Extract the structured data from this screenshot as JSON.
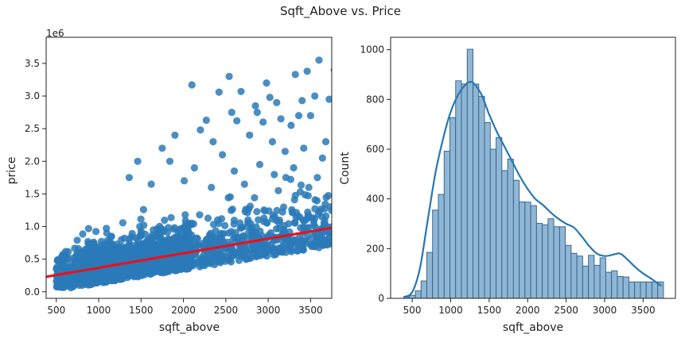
{
  "figure": {
    "title": "Sqft_Above vs. Price"
  },
  "chart_data": [
    {
      "type": "scatter",
      "xlabel": "sqft_above",
      "ylabel": "price",
      "offset_text": "1e6",
      "xlim": [
        380,
        3750
      ],
      "ylim": [
        -0.1,
        3.9
      ],
      "xticks": [
        500,
        1000,
        1500,
        2000,
        2500,
        3000,
        3500
      ],
      "xtick_labels": [
        "500",
        "1000",
        "1500",
        "2000",
        "2500",
        "3000",
        "3500"
      ],
      "yticks": [
        0.0,
        0.5,
        1.0,
        1.5,
        2.0,
        2.5,
        3.0,
        3.5
      ],
      "ytick_labels": [
        "0.0",
        "0.5",
        "1.0",
        "1.5",
        "2.0",
        "2.5",
        "3.0",
        "3.5"
      ],
      "grid": false,
      "colors": {
        "points": "#2a7ab8",
        "regression": "#e8111b"
      },
      "regression_line": {
        "x": [
          380,
          3750
        ],
        "y": [
          0.23,
          0.98
        ]
      },
      "outliers": {
        "x": [
          2100,
          2420,
          2540,
          2680,
          2980,
          3320,
          3460,
          3600,
          3780,
          2850,
          3100,
          3400,
          2270,
          2570,
          2870,
          3020,
          3150,
          3360,
          3550,
          3720,
          2200,
          2630,
          2940,
          3270,
          3500,
          1900,
          2350,
          2780,
          3050,
          3420,
          3680,
          1750,
          2460,
          3200,
          3640,
          1460,
          1840,
          2130,
          2600,
          2900,
          3300,
          3580,
          1360,
          1620,
          2010,
          2330,
          2720,
          3120,
          3480
        ],
        "y": [
          3.17,
          3.06,
          3.3,
          3.07,
          3.2,
          3.33,
          3.38,
          3.55,
          3.4,
          2.85,
          2.9,
          2.93,
          2.63,
          2.75,
          2.75,
          2.98,
          2.65,
          2.7,
          3.0,
          2.95,
          2.48,
          2.62,
          2.6,
          2.55,
          2.7,
          2.4,
          2.3,
          2.4,
          2.3,
          2.2,
          2.3,
          2.2,
          2.1,
          2.15,
          2.05,
          2.0,
          2.0,
          1.9,
          1.85,
          1.95,
          1.9,
          1.75,
          1.75,
          1.65,
          1.7,
          1.6,
          1.65,
          1.55,
          1.6
        ]
      }
    },
    {
      "type": "bar",
      "subtype": "histogram",
      "xlabel": "sqft_above",
      "ylabel": "Count",
      "xlim": [
        220,
        3920
      ],
      "ylim": [
        0,
        1050
      ],
      "xticks": [
        500,
        1000,
        1500,
        2000,
        2500,
        3000,
        3500
      ],
      "xtick_labels": [
        "500",
        "1000",
        "1500",
        "2000",
        "2500",
        "3000",
        "3500"
      ],
      "yticks": [
        0,
        200,
        400,
        600,
        800,
        1000
      ],
      "ytick_labels": [
        "0",
        "200",
        "400",
        "600",
        "800",
        "1000"
      ],
      "grid": false,
      "colors": {
        "bars": "#8fb6d4",
        "bar_edge": "#2f5f86",
        "kde": "#2777b4"
      },
      "bin_start": 390,
      "bin_width": 75,
      "counts": [
        5,
        12,
        30,
        70,
        185,
        355,
        418,
        592,
        727,
        875,
        862,
        1002,
        862,
        813,
        707,
        600,
        647,
        514,
        560,
        475,
        388,
        387,
        373,
        302,
        296,
        320,
        288,
        288,
        213,
        181,
        170,
        130,
        173,
        133,
        163,
        105,
        111,
        88,
        86,
        66,
        66,
        66,
        66,
        66,
        66
      ],
      "kde": {
        "x": [
          390,
          500,
          600,
          700,
          800,
          900,
          1000,
          1100,
          1200,
          1250,
          1300,
          1400,
          1500,
          1600,
          1700,
          1800,
          1900,
          2000,
          2100,
          2200,
          2300,
          2400,
          2500,
          2600,
          2700,
          2800,
          2900,
          3000,
          3100,
          3200,
          3300,
          3400,
          3500,
          3600,
          3700,
          3740
        ],
        "y": [
          5,
          25,
          120,
          310,
          500,
          640,
          750,
          820,
          862,
          870,
          865,
          820,
          740,
          670,
          610,
          550,
          490,
          440,
          400,
          375,
          345,
          320,
          300,
          285,
          250,
          210,
          180,
          170,
          175,
          180,
          155,
          125,
          100,
          80,
          58,
          50
        ]
      }
    }
  ]
}
